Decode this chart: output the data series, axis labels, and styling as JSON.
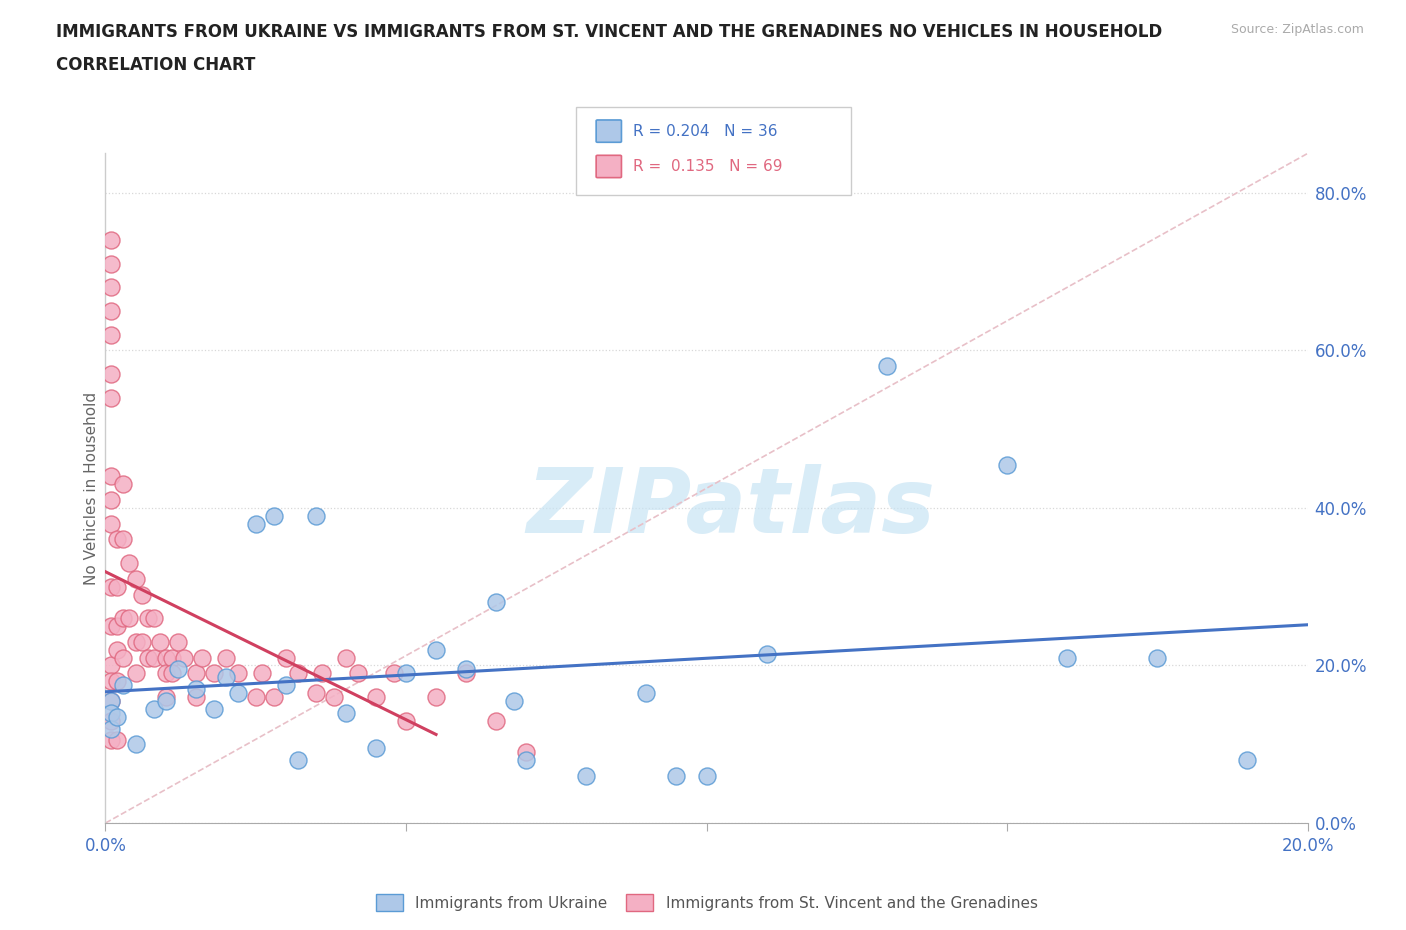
{
  "title_line1": "IMMIGRANTS FROM UKRAINE VS IMMIGRANTS FROM ST. VINCENT AND THE GRENADINES NO VEHICLES IN HOUSEHOLD",
  "title_line2": "CORRELATION CHART",
  "source": "Source: ZipAtlas.com",
  "ylabel": "No Vehicles in Household",
  "xlim": [
    0.0,
    0.2
  ],
  "ylim": [
    0.0,
    0.85
  ],
  "x_ticks": [
    0.0,
    0.05,
    0.1,
    0.15,
    0.2
  ],
  "x_tick_labels": [
    "0.0%",
    "",
    "",
    "",
    "20.0%"
  ],
  "y_ticks_right": [
    0.0,
    0.2,
    0.4,
    0.6,
    0.8
  ],
  "y_tick_labels_right": [
    "0.0%",
    "20.0%",
    "40.0%",
    "60.0%",
    "80.0%"
  ],
  "ukraine_R": 0.204,
  "ukraine_N": 36,
  "svg_R": 0.135,
  "svg_N": 69,
  "ukraine_color": "#aec8e8",
  "svg_color": "#f4b0c4",
  "ukraine_edge_color": "#5b9bd5",
  "svg_edge_color": "#e06880",
  "ukraine_line_color": "#4472c4",
  "svg_line_color": "#d04060",
  "diag_color": "#e8c0c8",
  "diag_style": "--",
  "grid_color": "#d8d8d8",
  "watermark_text": "ZIPatlas",
  "watermark_color": "#c8e4f4",
  "ukraine_x": [
    0.001,
    0.001,
    0.001,
    0.002,
    0.003,
    0.005,
    0.008,
    0.01,
    0.012,
    0.015,
    0.018,
    0.02,
    0.022,
    0.025,
    0.028,
    0.03,
    0.032,
    0.035,
    0.04,
    0.045,
    0.05,
    0.055,
    0.06,
    0.065,
    0.068,
    0.07,
    0.08,
    0.09,
    0.095,
    0.1,
    0.11,
    0.13,
    0.15,
    0.16,
    0.175,
    0.19
  ],
  "ukraine_y": [
    0.155,
    0.14,
    0.12,
    0.135,
    0.175,
    0.1,
    0.145,
    0.155,
    0.195,
    0.17,
    0.145,
    0.185,
    0.165,
    0.38,
    0.39,
    0.175,
    0.08,
    0.39,
    0.14,
    0.095,
    0.19,
    0.22,
    0.195,
    0.28,
    0.155,
    0.08,
    0.06,
    0.165,
    0.06,
    0.06,
    0.215,
    0.58,
    0.455,
    0.21,
    0.21,
    0.08
  ],
  "svg_x": [
    0.001,
    0.001,
    0.001,
    0.001,
    0.001,
    0.001,
    0.001,
    0.001,
    0.001,
    0.001,
    0.001,
    0.001,
    0.001,
    0.001,
    0.001,
    0.001,
    0.001,
    0.002,
    0.002,
    0.002,
    0.002,
    0.002,
    0.002,
    0.003,
    0.003,
    0.003,
    0.003,
    0.004,
    0.004,
    0.005,
    0.005,
    0.005,
    0.006,
    0.006,
    0.007,
    0.007,
    0.008,
    0.008,
    0.009,
    0.01,
    0.01,
    0.01,
    0.011,
    0.011,
    0.012,
    0.013,
    0.015,
    0.015,
    0.016,
    0.018,
    0.02,
    0.022,
    0.025,
    0.026,
    0.028,
    0.03,
    0.032,
    0.035,
    0.036,
    0.038,
    0.04,
    0.042,
    0.045,
    0.048,
    0.05,
    0.055,
    0.06,
    0.065,
    0.07
  ],
  "svg_y": [
    0.74,
    0.71,
    0.68,
    0.65,
    0.62,
    0.57,
    0.54,
    0.44,
    0.41,
    0.38,
    0.3,
    0.25,
    0.2,
    0.18,
    0.155,
    0.13,
    0.105,
    0.36,
    0.3,
    0.25,
    0.22,
    0.18,
    0.105,
    0.43,
    0.36,
    0.26,
    0.21,
    0.33,
    0.26,
    0.31,
    0.23,
    0.19,
    0.29,
    0.23,
    0.26,
    0.21,
    0.26,
    0.21,
    0.23,
    0.21,
    0.19,
    0.16,
    0.21,
    0.19,
    0.23,
    0.21,
    0.19,
    0.16,
    0.21,
    0.19,
    0.21,
    0.19,
    0.16,
    0.19,
    0.16,
    0.21,
    0.19,
    0.165,
    0.19,
    0.16,
    0.21,
    0.19,
    0.16,
    0.19,
    0.13,
    0.16,
    0.19,
    0.13,
    0.09
  ],
  "svg_line_start_x": 0.0,
  "svg_line_end_x": 0.055,
  "uk_line_start_x": 0.0,
  "uk_line_end_x": 0.2
}
